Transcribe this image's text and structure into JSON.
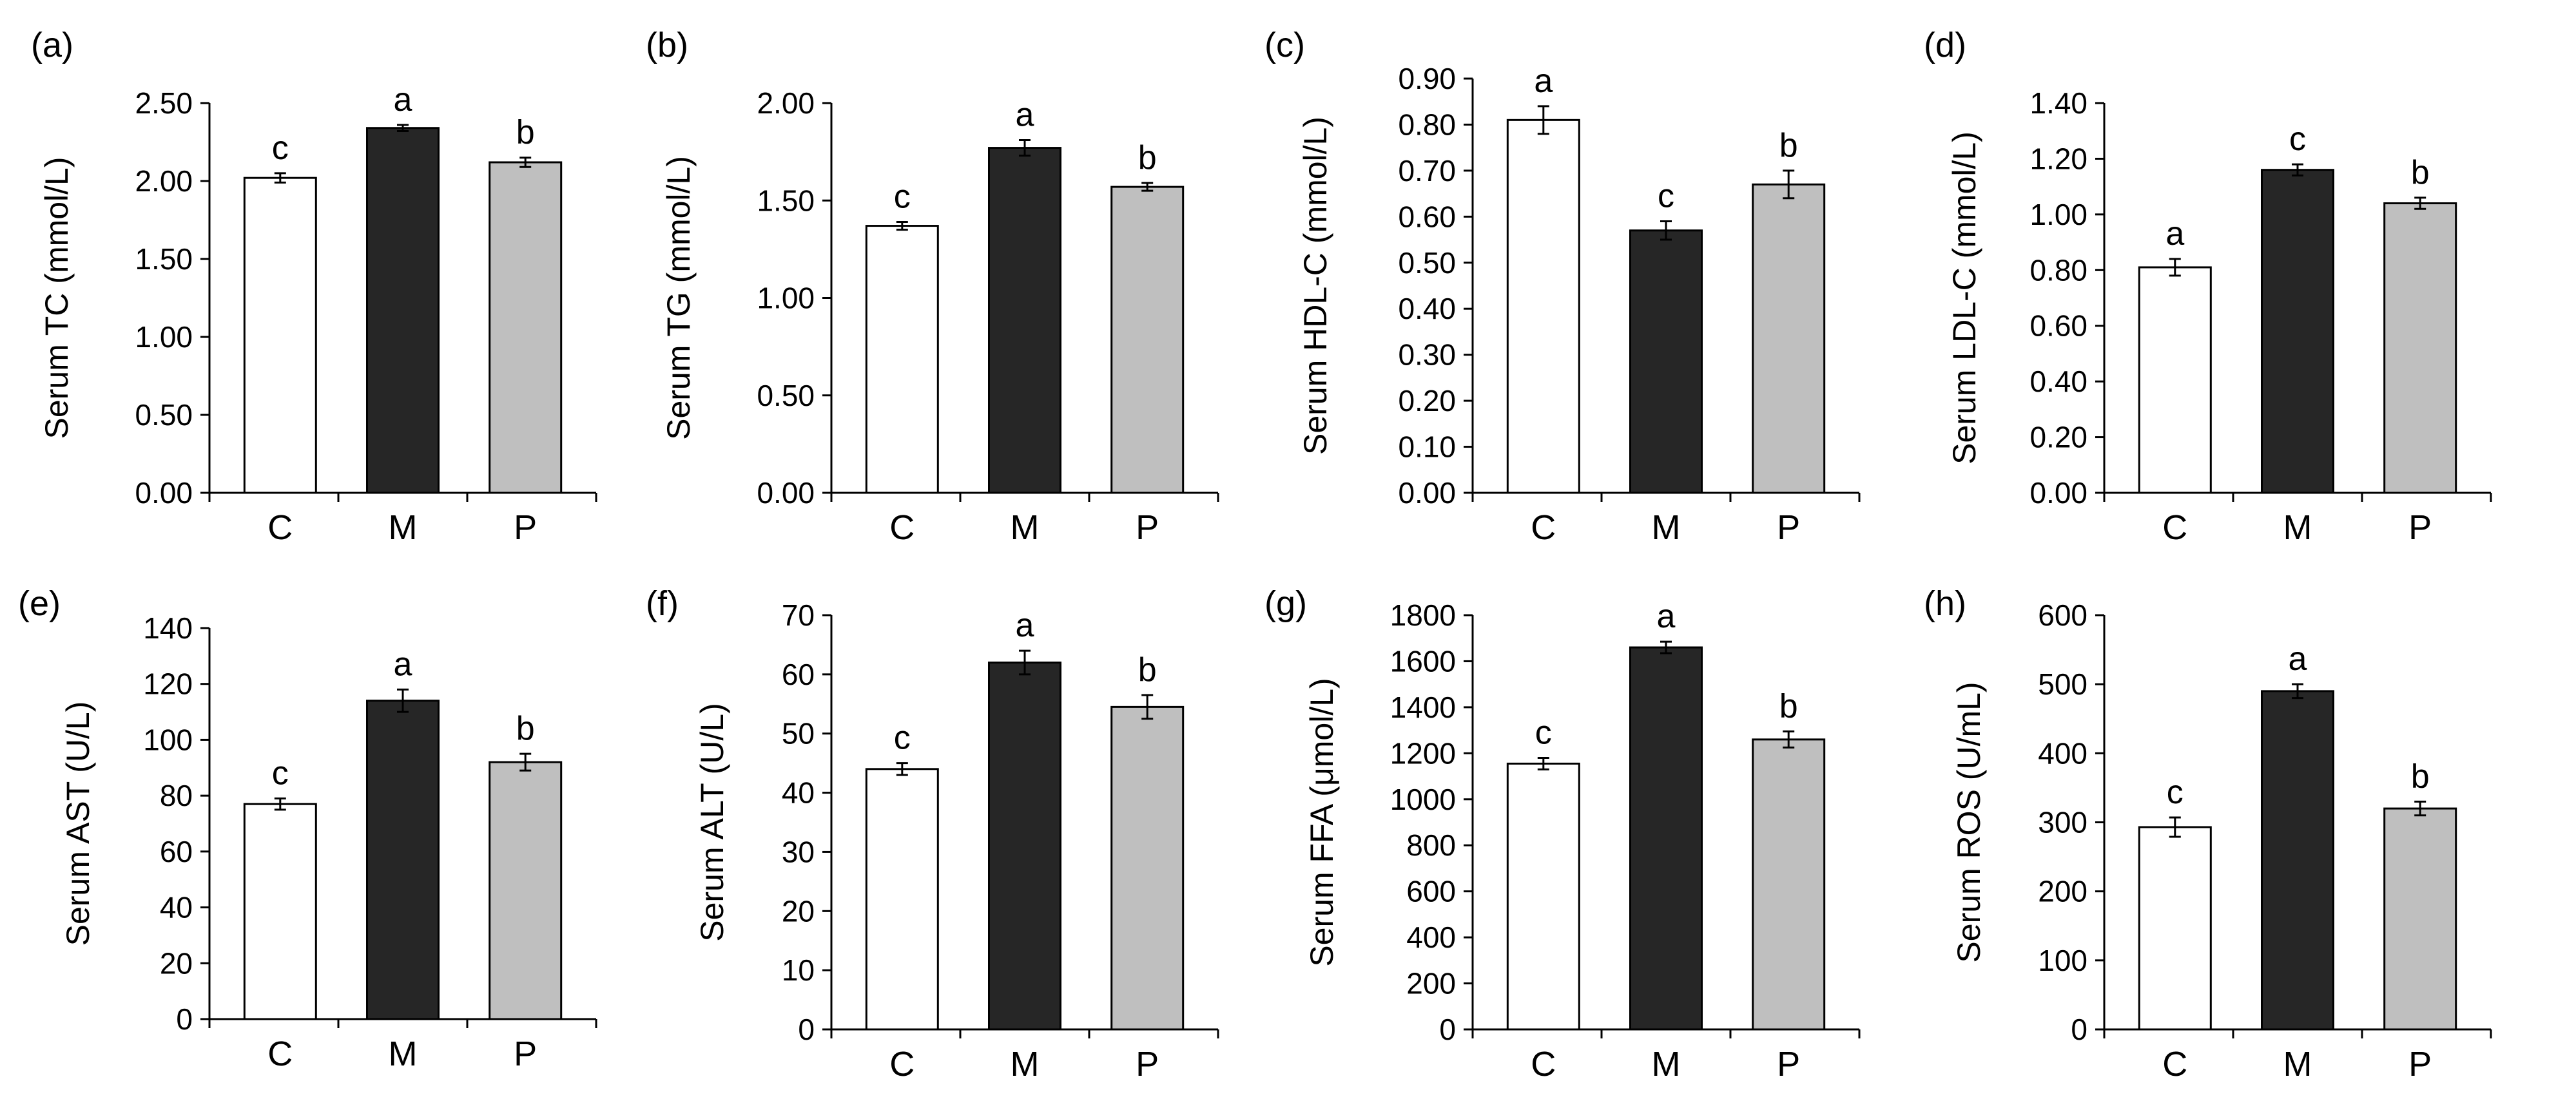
{
  "figure": {
    "categories": [
      "C",
      "M",
      "P"
    ],
    "group_colors": {
      "C": "#ffffff",
      "M": "#262626",
      "P": "#bfbfbf"
    },
    "axis_color": "#000000",
    "grid": false
  },
  "chart_data": [
    {
      "panel": "(a)",
      "type": "bar",
      "ylabel": "Serum TC (mmol/L)",
      "categories": [
        "C",
        "M",
        "P"
      ],
      "values": [
        2.02,
        2.34,
        2.12
      ],
      "errors": [
        0.03,
        0.02,
        0.03
      ],
      "sig": [
        "c",
        "a",
        "b"
      ],
      "ylim": [
        0,
        2.5
      ],
      "ticks": [
        "0.00",
        "0.50",
        "1.00",
        "1.50",
        "2.00",
        "2.50"
      ]
    },
    {
      "panel": "(b)",
      "type": "bar",
      "ylabel": "Serum TG (mmol/L)",
      "categories": [
        "C",
        "M",
        "P"
      ],
      "values": [
        1.37,
        1.77,
        1.57
      ],
      "errors": [
        0.02,
        0.04,
        0.02
      ],
      "sig": [
        "c",
        "a",
        "b"
      ],
      "ylim": [
        0,
        2.0
      ],
      "ticks": [
        "0.00",
        "0.50",
        "1.00",
        "1.50",
        "2.00"
      ]
    },
    {
      "panel": "(c)",
      "type": "bar",
      "ylabel": "Serum HDL-C (mmol/L)",
      "categories": [
        "C",
        "M",
        "P"
      ],
      "values": [
        0.81,
        0.57,
        0.67
      ],
      "errors": [
        0.03,
        0.02,
        0.03
      ],
      "sig": [
        "a",
        "c",
        "b"
      ],
      "ylim": [
        0,
        0.9
      ],
      "ticks": [
        "0.00",
        "0.10",
        "0.20",
        "0.30",
        "0.40",
        "0.50",
        "0.60",
        "0.70",
        "0.80",
        "0.90"
      ]
    },
    {
      "panel": "(d)",
      "type": "bar",
      "ylabel": "Serum LDL-C (mmol/L)",
      "categories": [
        "C",
        "M",
        "P"
      ],
      "values": [
        0.81,
        1.16,
        1.04
      ],
      "errors": [
        0.03,
        0.02,
        0.02
      ],
      "sig": [
        "a",
        "c",
        "b"
      ],
      "ylim": [
        0,
        1.4
      ],
      "ticks": [
        "0.00",
        "0.20",
        "0.40",
        "0.60",
        "0.80",
        "1.00",
        "1.20",
        "1.40"
      ]
    },
    {
      "panel": "(e)",
      "type": "bar",
      "ylabel": "Serum AST (U/L)",
      "categories": [
        "C",
        "M",
        "P"
      ],
      "values": [
        77,
        114,
        92
      ],
      "errors": [
        2,
        4,
        3
      ],
      "sig": [
        "c",
        "a",
        "b"
      ],
      "ylim": [
        0,
        140
      ],
      "ticks": [
        "0",
        "20",
        "40",
        "60",
        "80",
        "100",
        "120",
        "140"
      ]
    },
    {
      "panel": "(f)",
      "type": "bar",
      "ylabel": "Serum ALT (U/L)",
      "categories": [
        "C",
        "M",
        "P"
      ],
      "values": [
        44,
        62,
        54.5
      ],
      "errors": [
        1,
        2,
        2
      ],
      "sig": [
        "c",
        "a",
        "b"
      ],
      "ylim": [
        0,
        70
      ],
      "ticks": [
        "0",
        "10",
        "20",
        "30",
        "40",
        "50",
        "60",
        "70"
      ]
    },
    {
      "panel": "(g)",
      "type": "bar",
      "ylabel": "Serum FFA (μmol/L)",
      "categories": [
        "C",
        "M",
        "P"
      ],
      "values": [
        1155,
        1660,
        1260
      ],
      "errors": [
        25,
        25,
        35
      ],
      "sig": [
        "c",
        "a",
        "b"
      ],
      "ylim": [
        0,
        1800
      ],
      "ticks": [
        "0",
        "200",
        "400",
        "600",
        "800",
        "1000",
        "1200",
        "1400",
        "1600",
        "1800"
      ]
    },
    {
      "panel": "(h)",
      "type": "bar",
      "ylabel": "Serum ROS (U/mL)",
      "categories": [
        "C",
        "M",
        "P"
      ],
      "values": [
        293,
        490,
        320
      ],
      "errors": [
        14,
        10,
        10
      ],
      "sig": [
        "c",
        "a",
        "b"
      ],
      "ylim": [
        0,
        600
      ],
      "ticks": [
        "0",
        "100",
        "200",
        "300",
        "400",
        "500",
        "600"
      ]
    }
  ]
}
